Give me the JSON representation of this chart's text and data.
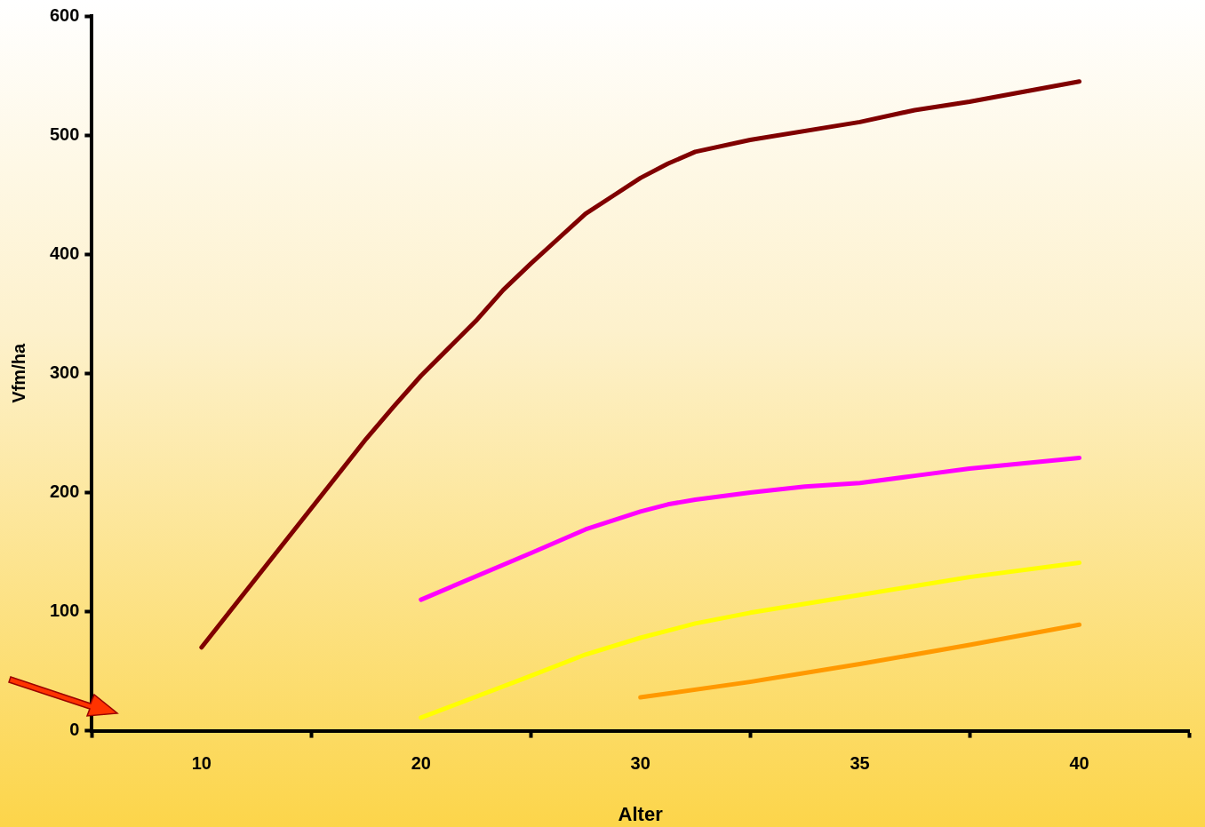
{
  "chart_data": {
    "type": "line",
    "xlabel": "Alter",
    "ylabel": "Vfm/ha",
    "categories": [
      null,
      null,
      null,
      null,
      "10",
      null,
      null,
      null,
      null,
      null,
      null,
      null,
      "20",
      null,
      null,
      null,
      null,
      null,
      null,
      null,
      "30",
      null,
      null,
      null,
      null,
      null,
      null,
      null,
      "35",
      null,
      null,
      null,
      null,
      null,
      null,
      null,
      "40",
      null,
      null,
      null,
      null
    ],
    "series": [
      {
        "color": "#800000",
        "values": [
          null,
          null,
          null,
          null,
          70,
          null,
          null,
          null,
          null,
          null,
          245,
          272,
          298,
          321,
          344,
          370,
          392,
          413,
          434,
          449,
          464,
          476,
          486,
          null,
          496,
          null,
          null,
          null,
          511,
          null,
          521,
          null,
          528,
          null,
          null,
          null,
          545,
          null,
          null,
          null,
          null
        ]
      },
      {
        "color": "#ff00ff",
        "values": [
          null,
          null,
          null,
          null,
          null,
          null,
          null,
          null,
          null,
          null,
          null,
          null,
          110,
          null,
          null,
          null,
          149,
          null,
          169,
          null,
          184,
          190,
          194,
          null,
          200,
          null,
          205,
          null,
          208,
          null,
          214,
          null,
          220,
          null,
          null,
          null,
          229,
          null,
          null,
          null,
          null
        ]
      },
      {
        "color": "#ffff00",
        "values": [
          null,
          null,
          null,
          null,
          null,
          null,
          null,
          null,
          null,
          null,
          null,
          null,
          11,
          null,
          null,
          null,
          46,
          null,
          64,
          null,
          78,
          null,
          90,
          null,
          99,
          null,
          null,
          null,
          114,
          null,
          null,
          null,
          129,
          null,
          null,
          null,
          141,
          null,
          null,
          null,
          null
        ]
      },
      {
        "color": "#ff9900",
        "values": [
          null,
          null,
          null,
          null,
          null,
          null,
          null,
          null,
          null,
          null,
          null,
          null,
          null,
          null,
          null,
          null,
          null,
          null,
          null,
          null,
          28,
          null,
          null,
          null,
          41,
          null,
          null,
          null,
          56,
          null,
          null,
          null,
          72,
          null,
          null,
          null,
          89,
          null,
          null,
          null,
          null
        ]
      }
    ],
    "ylim": [
      0,
      600
    ],
    "yticks": [
      0,
      100,
      200,
      300,
      400,
      500,
      600
    ],
    "grid": false,
    "legend": false,
    "marker": "none",
    "line_style": "solid"
  }
}
